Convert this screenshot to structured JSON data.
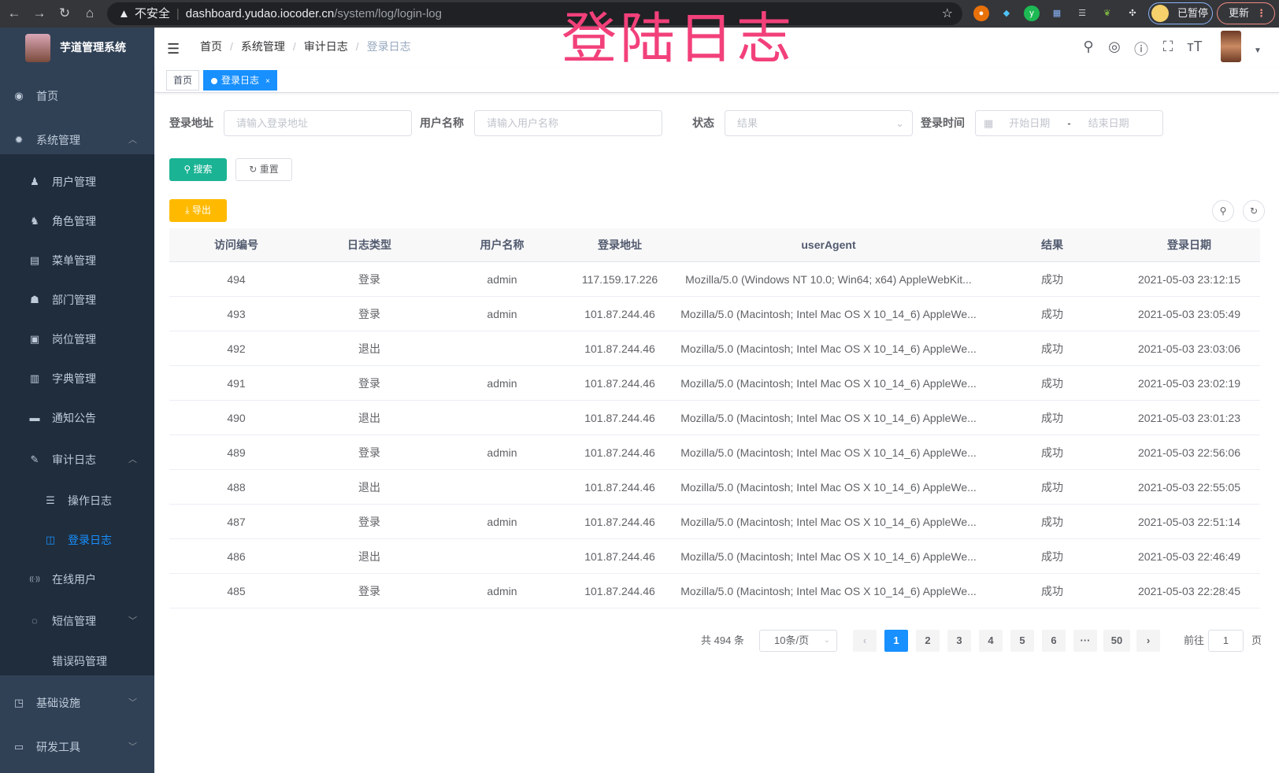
{
  "browser": {
    "security": "不安全",
    "host": "dashboard.yudao.iocoder.cn",
    "path": "/system/log/login-log",
    "profile": "已暂停",
    "update": "更新"
  },
  "overlay_title": "登陆日志",
  "sidebar": {
    "title": "芋道管理系统",
    "items": [
      {
        "label": "首页",
        "icon": "dashboard-icon"
      },
      {
        "label": "系统管理",
        "icon": "gear-icon",
        "expanded": true
      },
      {
        "label": "用户管理",
        "icon": "user-icon"
      },
      {
        "label": "角色管理",
        "icon": "peoples-icon"
      },
      {
        "label": "菜单管理",
        "icon": "tree-table-icon"
      },
      {
        "label": "部门管理",
        "icon": "tree-icon"
      },
      {
        "label": "岗位管理",
        "icon": "post-icon"
      },
      {
        "label": "字典管理",
        "icon": "dict-icon"
      },
      {
        "label": "通知公告",
        "icon": "message-icon"
      },
      {
        "label": "审计日志",
        "icon": "log-icon",
        "expanded": true
      },
      {
        "label": "操作日志",
        "icon": "form-icon"
      },
      {
        "label": "登录日志",
        "icon": "logininfor-icon",
        "active": true
      },
      {
        "label": "在线用户",
        "icon": "online-icon"
      },
      {
        "label": "短信管理",
        "icon": "validcode-icon",
        "expanded": false
      },
      {
        "label": "错误码管理",
        "icon": "code-icon"
      },
      {
        "label": "基础设施",
        "icon": "monitor-icon",
        "expanded": false
      },
      {
        "label": "研发工具",
        "icon": "tool-icon",
        "expanded": false
      }
    ]
  },
  "breadcrumb": [
    "首页",
    "系统管理",
    "审计日志",
    "登录日志"
  ],
  "tags": [
    {
      "label": "首页"
    },
    {
      "label": "登录日志",
      "active": true
    }
  ],
  "filters": {
    "ip": {
      "label": "登录地址",
      "placeholder": "请输入登录地址"
    },
    "username": {
      "label": "用户名称",
      "placeholder": "请输入用户名称"
    },
    "status": {
      "label": "状态",
      "placeholder": "结果"
    },
    "time": {
      "label": "登录时间",
      "start": "开始日期",
      "sep": "-",
      "end": "结束日期"
    }
  },
  "buttons": {
    "search": "搜索",
    "reset": "重置",
    "export": "导出"
  },
  "table": {
    "columns": [
      "访问编号",
      "日志类型",
      "用户名称",
      "登录地址",
      "userAgent",
      "结果",
      "登录日期"
    ],
    "rows": [
      [
        "494",
        "登录",
        "admin",
        "117.159.17.226",
        "Mozilla/5.0 (Windows NT 10.0; Win64; x64) AppleWebKit...",
        "成功",
        "2021-05-03 23:12:15"
      ],
      [
        "493",
        "登录",
        "admin",
        "101.87.244.46",
        "Mozilla/5.0 (Macintosh; Intel Mac OS X 10_14_6) AppleWe...",
        "成功",
        "2021-05-03 23:05:49"
      ],
      [
        "492",
        "退出",
        "",
        "101.87.244.46",
        "Mozilla/5.0 (Macintosh; Intel Mac OS X 10_14_6) AppleWe...",
        "成功",
        "2021-05-03 23:03:06"
      ],
      [
        "491",
        "登录",
        "admin",
        "101.87.244.46",
        "Mozilla/5.0 (Macintosh; Intel Mac OS X 10_14_6) AppleWe...",
        "成功",
        "2021-05-03 23:02:19"
      ],
      [
        "490",
        "退出",
        "",
        "101.87.244.46",
        "Mozilla/5.0 (Macintosh; Intel Mac OS X 10_14_6) AppleWe...",
        "成功",
        "2021-05-03 23:01:23"
      ],
      [
        "489",
        "登录",
        "admin",
        "101.87.244.46",
        "Mozilla/5.0 (Macintosh; Intel Mac OS X 10_14_6) AppleWe...",
        "成功",
        "2021-05-03 22:56:06"
      ],
      [
        "488",
        "退出",
        "",
        "101.87.244.46",
        "Mozilla/5.0 (Macintosh; Intel Mac OS X 10_14_6) AppleWe...",
        "成功",
        "2021-05-03 22:55:05"
      ],
      [
        "487",
        "登录",
        "admin",
        "101.87.244.46",
        "Mozilla/5.0 (Macintosh; Intel Mac OS X 10_14_6) AppleWe...",
        "成功",
        "2021-05-03 22:51:14"
      ],
      [
        "486",
        "退出",
        "",
        "101.87.244.46",
        "Mozilla/5.0 (Macintosh; Intel Mac OS X 10_14_6) AppleWe...",
        "成功",
        "2021-05-03 22:46:49"
      ],
      [
        "485",
        "登录",
        "admin",
        "101.87.244.46",
        "Mozilla/5.0 (Macintosh; Intel Mac OS X 10_14_6) AppleWe...",
        "成功",
        "2021-05-03 22:28:45"
      ]
    ]
  },
  "pagination": {
    "total": "共 494 条",
    "page_size": "10条/页",
    "pages": [
      "1",
      "2",
      "3",
      "4",
      "5",
      "6",
      "···",
      "50"
    ],
    "current": "1",
    "goto_label": "前往",
    "goto_value": "1",
    "page_unit": "页"
  },
  "colors": {
    "sidebar_bg": "#304156",
    "submenu_bg": "#1f2d3d",
    "primary": "#1890ff",
    "search": "#1ab394",
    "export": "#ffba00",
    "overlay": "#f2407a"
  }
}
